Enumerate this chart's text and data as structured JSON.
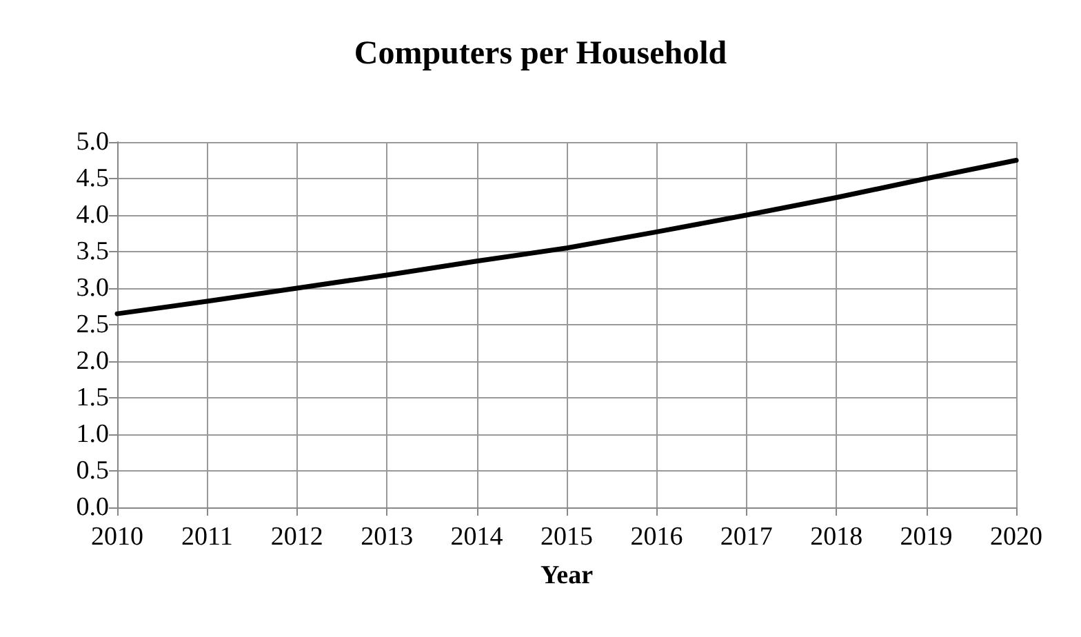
{
  "chart_data": {
    "type": "line",
    "title": "Computers per Household",
    "xlabel": "Year",
    "categories": [
      "2010",
      "2011",
      "2012",
      "2013",
      "2014",
      "2015",
      "2016",
      "2017",
      "2018",
      "2019",
      "2020"
    ],
    "series": [
      {
        "color": "#000000",
        "values": [
          2.65,
          2.82,
          3.0,
          3.18,
          3.37,
          3.55,
          3.77,
          4.0,
          4.24,
          4.5,
          4.75
        ]
      }
    ],
    "ylim": [
      0,
      5
    ],
    "yticks": [
      {
        "value": 0,
        "label": "0.0"
      },
      {
        "value": 0.5,
        "label": "0.5"
      },
      {
        "value": 1,
        "label": "1.0"
      },
      {
        "value": 1.5,
        "label": "1.5"
      },
      {
        "value": 2,
        "label": "2.0"
      },
      {
        "value": 2.5,
        "label": "2.5"
      },
      {
        "value": 3,
        "label": "3.0"
      },
      {
        "value": 3.5,
        "label": "3.5"
      },
      {
        "value": 4,
        "label": "4.0"
      },
      {
        "value": 4.5,
        "label": "4.5"
      },
      {
        "value": 5,
        "label": "5.0"
      }
    ],
    "grid": true,
    "marker": "none",
    "line_style": "solid"
  }
}
